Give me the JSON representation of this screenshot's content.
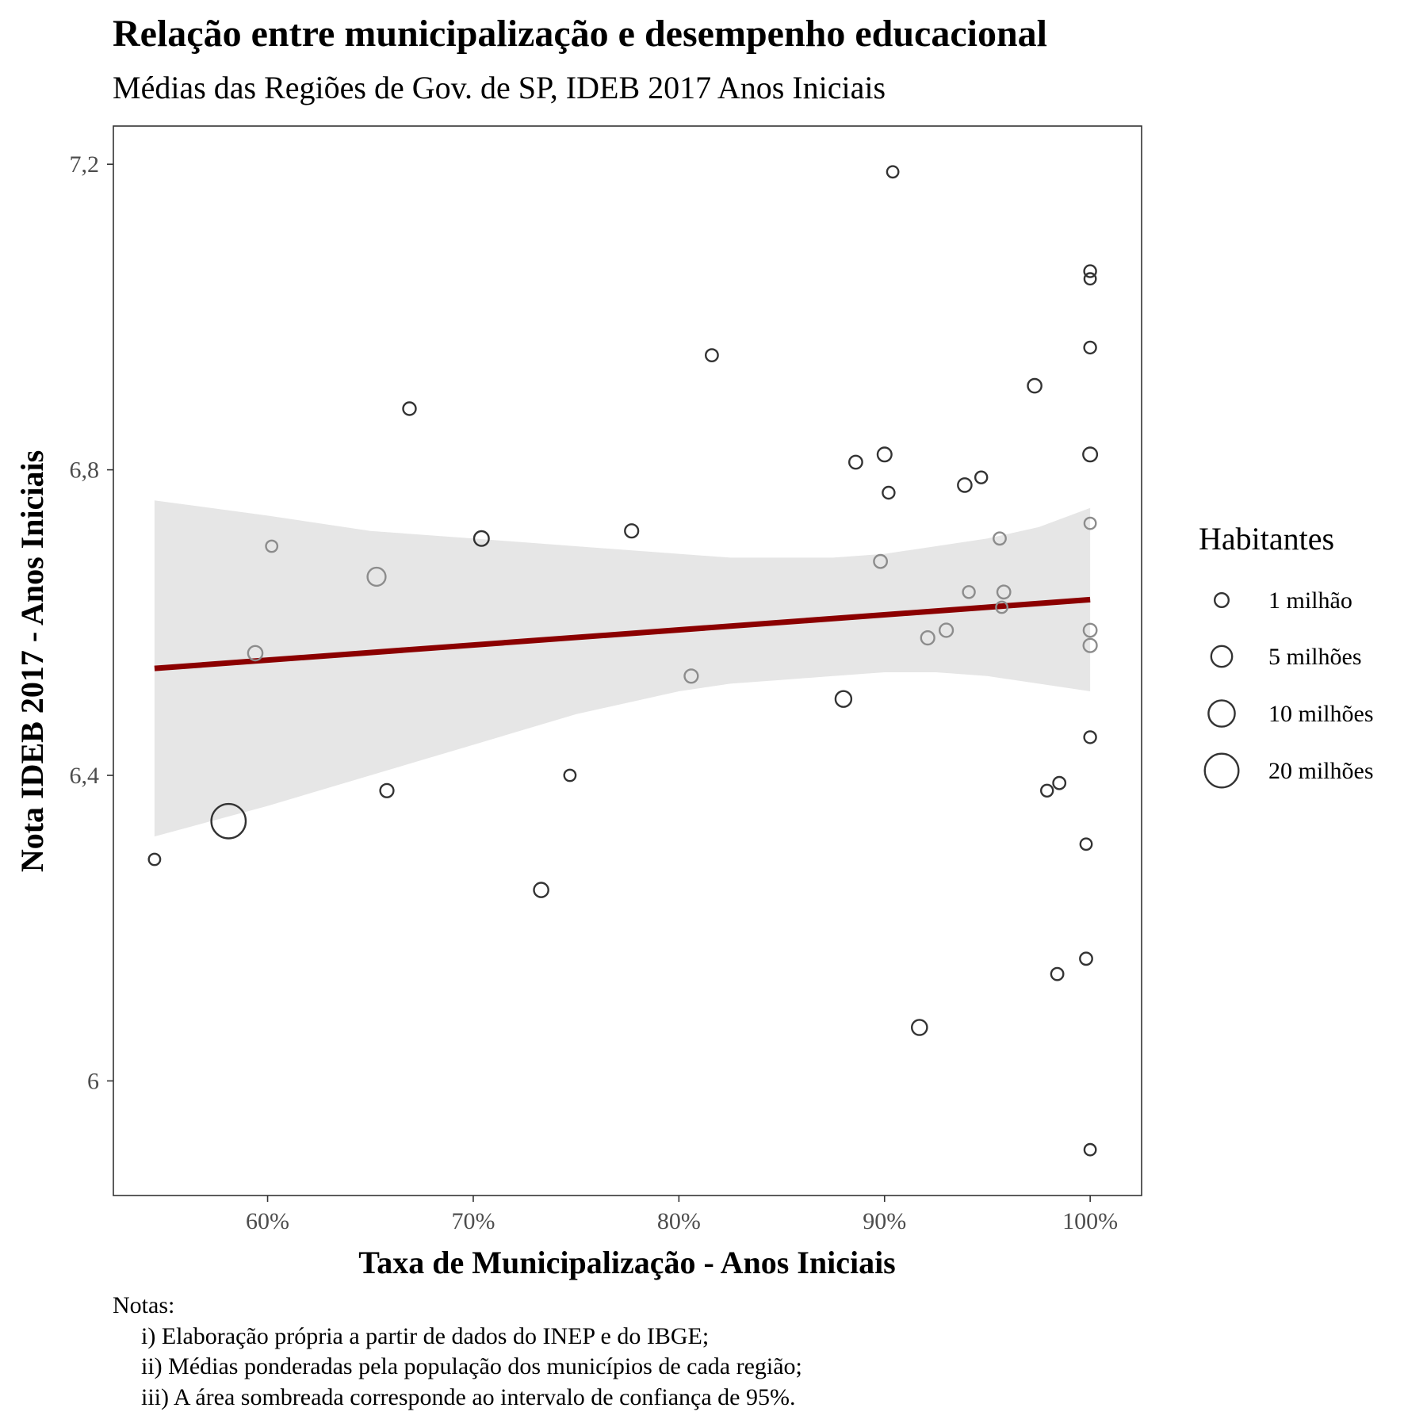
{
  "chart_data": {
    "type": "scatter",
    "title": "Relação entre municipalização e desempenho educacional",
    "subtitle": "Médias das Regiões de Gov. de SP, IDEB 2017 Anos Iniciais",
    "xlabel": "Taxa de Municipalização - Anos Iniciais",
    "ylabel": "Nota IDEB 2017 - Anos Iniciais",
    "xlim": [
      52.5,
      102.5
    ],
    "ylim": [
      5.85,
      7.25
    ],
    "x_ticks": [
      60,
      70,
      80,
      90,
      100
    ],
    "x_tick_labels": [
      "60%",
      "70%",
      "80%",
      "90%",
      "100%"
    ],
    "y_ticks": [
      6.0,
      6.4,
      6.8,
      7.2
    ],
    "y_tick_labels": [
      "6",
      "6,4",
      "6,8",
      "7,2"
    ],
    "grid": false,
    "legend": {
      "title": "Habitantes",
      "placement": "right",
      "entries": [
        {
          "label": "1 milhão",
          "population": 1000000
        },
        {
          "label": "5 milhões",
          "population": 5000000
        },
        {
          "label": "10 milhões",
          "population": 10000000
        },
        {
          "label": "20 milhões",
          "population": 20000000
        }
      ]
    },
    "series": [
      {
        "points": [
          {
            "x": 54.5,
            "y": 6.29,
            "pop": 0.3
          },
          {
            "x": 58.1,
            "y": 6.34,
            "pop": 21.0
          },
          {
            "x": 59.4,
            "y": 6.56,
            "pop": 1.2
          },
          {
            "x": 60.2,
            "y": 6.7,
            "pop": 0.3
          },
          {
            "x": 65.3,
            "y": 6.66,
            "pop": 3.0
          },
          {
            "x": 65.8,
            "y": 6.38,
            "pop": 0.8
          },
          {
            "x": 66.9,
            "y": 6.88,
            "pop": 0.6
          },
          {
            "x": 70.4,
            "y": 6.71,
            "pop": 1.3
          },
          {
            "x": 73.3,
            "y": 6.25,
            "pop": 1.2
          },
          {
            "x": 74.7,
            "y": 6.4,
            "pop": 0.3
          },
          {
            "x": 77.7,
            "y": 6.72,
            "pop": 0.8
          },
          {
            "x": 80.6,
            "y": 6.53,
            "pop": 0.8
          },
          {
            "x": 81.6,
            "y": 6.95,
            "pop": 0.5
          },
          {
            "x": 88.0,
            "y": 6.5,
            "pop": 1.8
          },
          {
            "x": 88.6,
            "y": 6.81,
            "pop": 0.7
          },
          {
            "x": 89.8,
            "y": 6.68,
            "pop": 0.7
          },
          {
            "x": 90.0,
            "y": 6.82,
            "pop": 1.0
          },
          {
            "x": 90.2,
            "y": 6.77,
            "pop": 0.4
          },
          {
            "x": 90.4,
            "y": 7.19,
            "pop": 0.3
          },
          {
            "x": 91.7,
            "y": 6.07,
            "pop": 1.5
          },
          {
            "x": 92.1,
            "y": 6.58,
            "pop": 0.8
          },
          {
            "x": 93.0,
            "y": 6.59,
            "pop": 0.8
          },
          {
            "x": 93.9,
            "y": 6.78,
            "pop": 0.9
          },
          {
            "x": 94.1,
            "y": 6.64,
            "pop": 0.4
          },
          {
            "x": 94.7,
            "y": 6.79,
            "pop": 0.4
          },
          {
            "x": 95.6,
            "y": 6.71,
            "pop": 0.5
          },
          {
            "x": 95.7,
            "y": 6.62,
            "pop": 0.3
          },
          {
            "x": 95.8,
            "y": 6.64,
            "pop": 0.7
          },
          {
            "x": 97.3,
            "y": 6.91,
            "pop": 0.9
          },
          {
            "x": 97.9,
            "y": 6.38,
            "pop": 0.4
          },
          {
            "x": 98.4,
            "y": 6.14,
            "pop": 0.5
          },
          {
            "x": 98.5,
            "y": 6.39,
            "pop": 0.5
          },
          {
            "x": 99.8,
            "y": 6.16,
            "pop": 0.5
          },
          {
            "x": 99.8,
            "y": 6.31,
            "pop": 0.3
          },
          {
            "x": 100.0,
            "y": 7.06,
            "pop": 0.4
          },
          {
            "x": 100.0,
            "y": 7.05,
            "pop": 0.3
          },
          {
            "x": 100.0,
            "y": 6.96,
            "pop": 0.4
          },
          {
            "x": 100.0,
            "y": 6.82,
            "pop": 1.0
          },
          {
            "x": 100.0,
            "y": 6.73,
            "pop": 0.3
          },
          {
            "x": 100.0,
            "y": 6.59,
            "pop": 0.7
          },
          {
            "x": 100.0,
            "y": 6.57,
            "pop": 0.8
          },
          {
            "x": 100.0,
            "y": 6.45,
            "pop": 0.4
          },
          {
            "x": 100.0,
            "y": 5.91,
            "pop": 0.3
          }
        ]
      }
    ],
    "trend_line": {
      "x": [
        54.5,
        100.0
      ],
      "y": [
        6.54,
        6.63
      ],
      "color": "#8b0000"
    },
    "confidence_band": {
      "color": "#e6e6e6",
      "x": [
        54.5,
        60,
        65,
        70,
        75,
        80,
        82.5,
        85,
        87.5,
        90,
        92.5,
        95,
        97.5,
        100
      ],
      "upper": [
        6.76,
        6.74,
        6.72,
        6.71,
        6.7,
        6.69,
        6.685,
        6.685,
        6.685,
        6.69,
        6.7,
        6.71,
        6.725,
        6.75
      ],
      "lower": [
        6.32,
        6.36,
        6.4,
        6.44,
        6.48,
        6.51,
        6.52,
        6.525,
        6.53,
        6.535,
        6.535,
        6.53,
        6.52,
        6.51
      ]
    },
    "point_stroke": "#333333",
    "point_stroke_in_band": "#8c8c8c",
    "notes": [
      "Notas:",
      "i) Elaboração própria a partir de dados do INEP e do IBGE;",
      "ii) Médias ponderadas pela população dos municípios de cada região;",
      "iii) A área sombreada corresponde ao intervalo de confiança de 95%."
    ]
  }
}
